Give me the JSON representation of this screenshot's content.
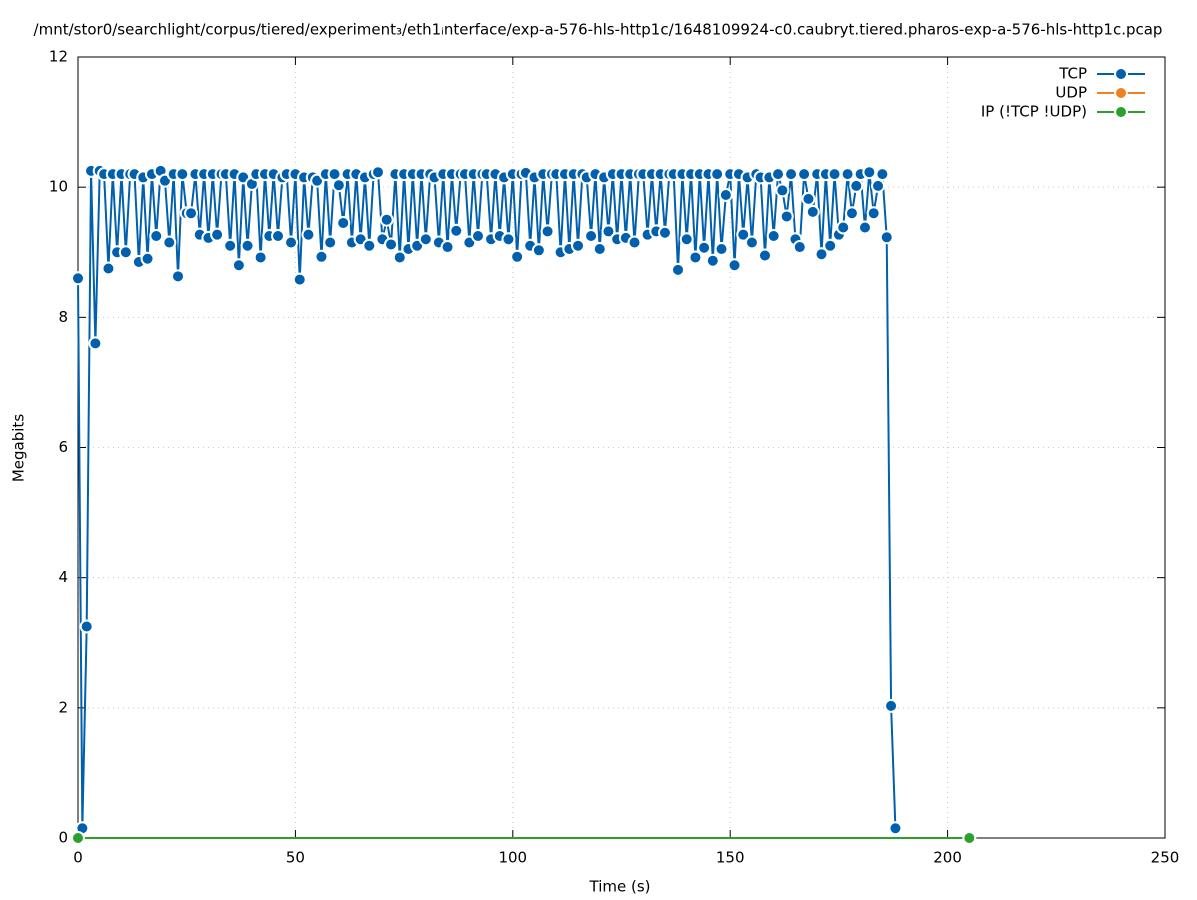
{
  "chart_data": {
    "type": "line",
    "title": "/mnt/stor0/searchlight/corpus/tiered/experiment₃/eth1ᵢnterface/exp-a-576-hls-http1c/1648109924-c0.caubryt.tiered.pharos-exp-a-576-hls-http1c.pcap",
    "xlabel": "Time (s)",
    "ylabel": "Megabits",
    "xlim": [
      0,
      250
    ],
    "xticks": [
      0,
      50,
      100,
      150,
      200,
      250
    ],
    "ylim": [
      0,
      12
    ],
    "yticks": [
      0,
      2,
      4,
      6,
      8,
      10,
      12
    ],
    "grid": true,
    "legend": "top-right",
    "series": [
      {
        "name": "TCP",
        "color": "#0060ad",
        "x": [
          0,
          1,
          2,
          3,
          4,
          5,
          6,
          7,
          8,
          9,
          10,
          11,
          12,
          13,
          14,
          15,
          16,
          17,
          18,
          19,
          20,
          21,
          22,
          23,
          24,
          25,
          26,
          27,
          28,
          29,
          30,
          31,
          32,
          33,
          34,
          35,
          36,
          37,
          38,
          39,
          40,
          41,
          42,
          43,
          44,
          45,
          46,
          47,
          48,
          49,
          50,
          51,
          52,
          53,
          54,
          55,
          56,
          57,
          58,
          59,
          60,
          61,
          62,
          63,
          64,
          65,
          66,
          67,
          68,
          69,
          70,
          71,
          72,
          73,
          74,
          75,
          76,
          77,
          78,
          79,
          80,
          81,
          82,
          83,
          84,
          85,
          86,
          87,
          88,
          89,
          90,
          91,
          92,
          93,
          94,
          95,
          96,
          97,
          98,
          99,
          100,
          101,
          102,
          103,
          104,
          105,
          106,
          107,
          108,
          109,
          110,
          111,
          112,
          113,
          114,
          115,
          116,
          117,
          118,
          119,
          120,
          121,
          122,
          123,
          124,
          125,
          126,
          127,
          128,
          129,
          130,
          131,
          132,
          133,
          134,
          135,
          136,
          137,
          138,
          139,
          140,
          141,
          142,
          143,
          144,
          145,
          146,
          147,
          148,
          149,
          150,
          151,
          152,
          153,
          154,
          155,
          156,
          157,
          158,
          159,
          160,
          161,
          162,
          163,
          164,
          165,
          166,
          167,
          168,
          169,
          170,
          171,
          172,
          173,
          174,
          175,
          176,
          177,
          178,
          179,
          180,
          181,
          182,
          183,
          184,
          185,
          186,
          187,
          188
        ],
        "values": [
          8.6,
          0.15,
          3.25,
          10.25,
          7.6,
          10.25,
          10.2,
          8.75,
          10.2,
          9.0,
          10.2,
          9.0,
          10.2,
          10.2,
          8.85,
          10.15,
          8.9,
          10.2,
          9.25,
          10.25,
          10.1,
          9.15,
          10.2,
          8.63,
          10.2,
          9.6,
          9.6,
          10.2,
          9.27,
          10.2,
          9.22,
          10.2,
          9.27,
          10.2,
          10.2,
          9.1,
          10.2,
          8.8,
          10.15,
          9.1,
          10.05,
          10.2,
          8.92,
          10.2,
          9.25,
          10.2,
          9.25,
          10.15,
          10.2,
          9.15,
          10.2,
          8.58,
          10.15,
          9.27,
          10.15,
          10.1,
          8.93,
          10.2,
          9.15,
          10.2,
          10.03,
          9.45,
          10.2,
          9.15,
          10.2,
          9.2,
          10.15,
          9.1,
          10.2,
          10.23,
          9.2,
          9.5,
          9.12,
          10.2,
          8.92,
          10.2,
          9.05,
          10.2,
          9.1,
          10.2,
          9.2,
          10.2,
          10.15,
          9.15,
          10.2,
          9.08,
          10.2,
          9.33,
          10.2,
          10.2,
          9.15,
          10.2,
          9.25,
          10.2,
          10.2,
          9.2,
          10.2,
          9.25,
          10.15,
          9.2,
          10.2,
          8.93,
          10.2,
          10.22,
          9.1,
          10.15,
          9.03,
          10.2,
          9.32,
          10.2,
          10.2,
          9.0,
          10.2,
          9.05,
          10.2,
          9.1,
          10.2,
          10.15,
          9.25,
          10.2,
          9.05,
          10.15,
          9.32,
          10.2,
          9.2,
          10.2,
          9.22,
          10.2,
          9.15,
          10.2,
          10.2,
          9.27,
          10.2,
          9.32,
          10.2,
          9.3,
          10.2,
          10.2,
          8.73,
          10.2,
          9.2,
          10.2,
          8.92,
          10.2,
          9.07,
          10.2,
          8.87,
          10.2,
          9.05,
          9.88,
          10.2,
          8.8,
          10.2,
          9.27,
          10.15,
          9.15,
          10.2,
          10.15,
          8.95,
          10.15,
          9.25,
          10.2,
          9.95,
          9.55,
          10.2,
          9.2,
          9.08,
          10.2,
          9.82,
          9.62,
          10.2,
          8.97,
          10.2,
          9.1,
          10.2,
          9.27,
          9.38,
          10.2,
          9.6,
          10.02,
          10.2,
          9.38,
          10.23,
          9.6,
          10.02,
          10.2,
          9.23,
          2.03,
          0.15
        ]
      },
      {
        "name": "UDP",
        "color": "#f08020",
        "x": [],
        "values": []
      },
      {
        "name": "IP (!TCP  !UDP)",
        "color": "#2ca02c",
        "x": [
          0,
          205
        ],
        "values": [
          0,
          0
        ]
      }
    ]
  }
}
